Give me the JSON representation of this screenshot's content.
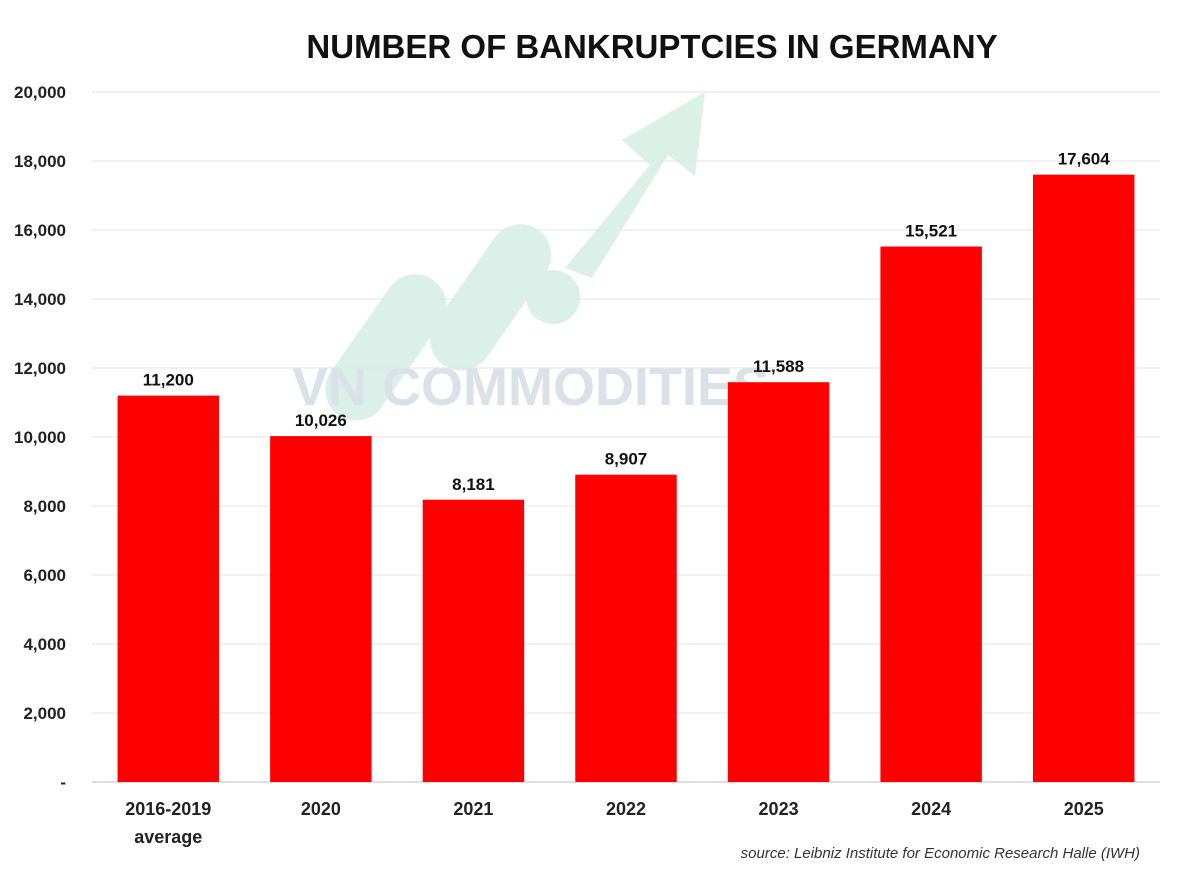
{
  "watermark": {
    "text": "VN COMMODITIES"
  },
  "chart_data": {
    "type": "bar",
    "title": "NUMBER OF BANKRUPTCIES IN GERMANY",
    "categories": [
      [
        "2016-2019",
        "average"
      ],
      [
        "2020"
      ],
      [
        "2021"
      ],
      [
        "2022"
      ],
      [
        "2023"
      ],
      [
        "2024"
      ],
      [
        "2025"
      ]
    ],
    "values": [
      11200,
      10026,
      8181,
      8907,
      11588,
      15521,
      17604
    ],
    "data_labels": [
      "11,200",
      "10,026",
      "8,181",
      "8,907",
      "11,588",
      "15,521",
      "17,604"
    ],
    "y_ticks": [
      0,
      2000,
      4000,
      6000,
      8000,
      10000,
      12000,
      14000,
      16000,
      18000,
      20000
    ],
    "y_tick_labels": [
      "-",
      "2,000",
      "4,000",
      "6,000",
      "8,000",
      "10,000",
      "12,000",
      "14,000",
      "16,000",
      "18,000",
      "20,000"
    ],
    "ylim": [
      0,
      20000
    ],
    "grid": true,
    "bar_color": "#ff0000",
    "source": "source: Leibniz Institute for Economic Research Halle (IWH)"
  }
}
